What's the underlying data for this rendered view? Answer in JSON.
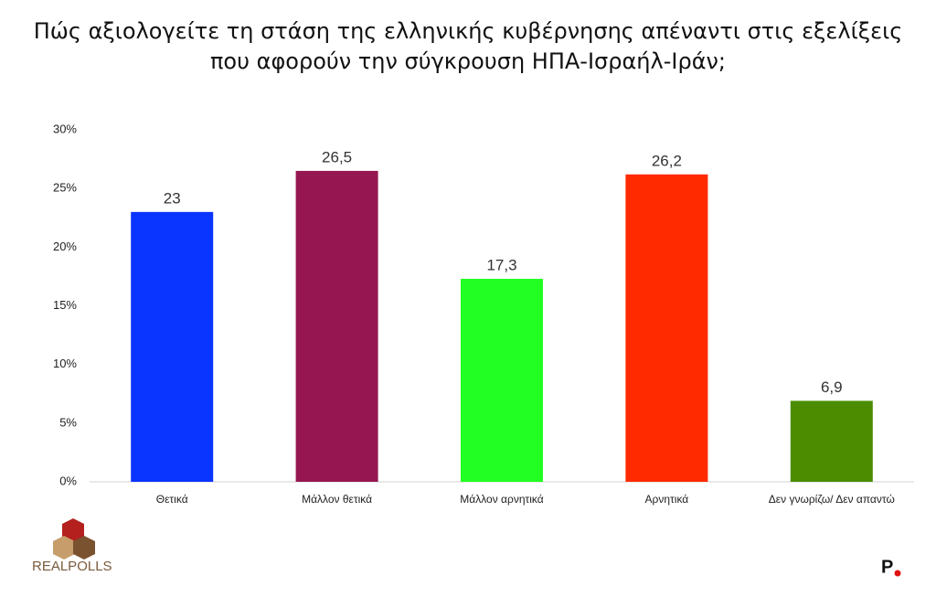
{
  "chart_data": {
    "type": "bar",
    "title": "Πώς αξιολογείτε τη στάση της ελληνικής κυβέρνησης απέναντι στις εξελίξεις που αφορούν την σύγκρουση ΗΠΑ-Ισραήλ-Ιράν;",
    "categories": [
      "Θετικά",
      "Μάλλον θετικά",
      "Μάλλον αρνητικά",
      "Αρνητικά",
      "Δεν γνωρίζω/ Δεν απαντώ"
    ],
    "values": [
      23,
      26.5,
      17.3,
      26.2,
      6.9
    ],
    "value_labels": [
      "23",
      "26,5",
      "17,3",
      "26,2",
      "6,9"
    ],
    "colors": [
      "#0a34ff",
      "#951650",
      "#22ff22",
      "#ff2a00",
      "#4b8c00"
    ],
    "ylim": [
      0,
      30
    ],
    "yticks": [
      {
        "value": 0,
        "label": "0%"
      },
      {
        "value": 5,
        "label": "5%"
      },
      {
        "value": 10,
        "label": "10%"
      },
      {
        "value": 15,
        "label": "15%"
      },
      {
        "value": 20,
        "label": "20%"
      },
      {
        "value": 25,
        "label": "25%"
      },
      {
        "value": 30,
        "label": "30%"
      }
    ],
    "grid": false
  },
  "logos": {
    "source": "REALPOLLS",
    "publisher": "P"
  }
}
